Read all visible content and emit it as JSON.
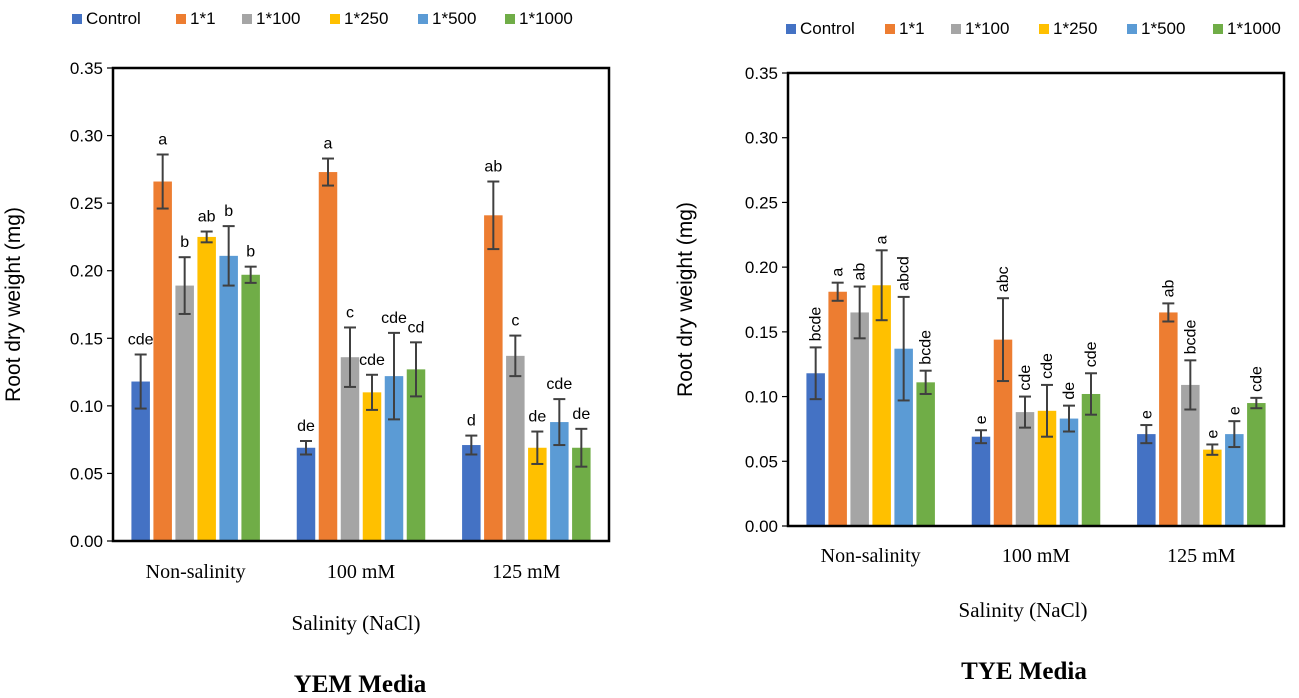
{
  "chart_data": [
    {
      "type": "bar",
      "title": "YEM Media",
      "xlabel": "Salinity (NaCl)",
      "ylabel": "Root dry weight (mg)",
      "ylim": [
        0,
        0.35
      ],
      "yticks": [
        "0.00",
        "0.05",
        "0.10",
        "0.15",
        "0.20",
        "0.25",
        "0.30",
        "0.35"
      ],
      "categories": [
        "Non-salinity",
        "100 mM",
        "125 mM"
      ],
      "legend_position": "top",
      "annotation_rotation": "horizontal",
      "series": [
        {
          "name": "Control",
          "color": "#4472C4",
          "values": [
            0.118,
            0.069,
            0.071
          ],
          "errors": [
            0.02,
            0.005,
            0.007
          ],
          "labels": [
            "cde",
            "de",
            "d"
          ]
        },
        {
          "name": "1*1",
          "color": "#ED7D31",
          "values": [
            0.266,
            0.273,
            0.241
          ],
          "errors": [
            0.02,
            0.01,
            0.025
          ],
          "labels": [
            "a",
            "a",
            "ab"
          ]
        },
        {
          "name": "1*100",
          "color": "#A5A5A5",
          "values": [
            0.189,
            0.136,
            0.137
          ],
          "errors": [
            0.021,
            0.022,
            0.015
          ],
          "labels": [
            "b",
            "c",
            "c"
          ]
        },
        {
          "name": "1*250",
          "color": "#FFC000",
          "values": [
            0.225,
            0.11,
            0.069
          ],
          "errors": [
            0.004,
            0.013,
            0.012
          ],
          "labels": [
            "ab",
            "cde",
            "de"
          ]
        },
        {
          "name": "1*500",
          "color": "#5B9BD5",
          "values": [
            0.211,
            0.122,
            0.088
          ],
          "errors": [
            0.022,
            0.032,
            0.017
          ],
          "labels": [
            "b",
            "cde",
            "cde"
          ]
        },
        {
          "name": "1*1000",
          "color": "#70AD47",
          "values": [
            0.197,
            0.127,
            0.069
          ],
          "errors": [
            0.006,
            0.02,
            0.014
          ],
          "labels": [
            "b",
            "cd",
            "de"
          ]
        }
      ]
    },
    {
      "type": "bar",
      "title": "TYE Media",
      "xlabel": "Salinity (NaCl)",
      "ylabel": "Root dry weight (mg)",
      "ylim": [
        0,
        0.35
      ],
      "yticks": [
        "0.00",
        "0.05",
        "0.10",
        "0.15",
        "0.20",
        "0.25",
        "0.30",
        "0.35"
      ],
      "categories": [
        "Non-salinity",
        "100 mM",
        "125 mM"
      ],
      "legend_position": "top",
      "annotation_rotation": "vertical",
      "series": [
        {
          "name": "Control",
          "color": "#4472C4",
          "values": [
            0.118,
            0.069,
            0.071
          ],
          "errors": [
            0.02,
            0.005,
            0.007
          ],
          "labels": [
            "bcde",
            "e",
            "e"
          ]
        },
        {
          "name": "1*1",
          "color": "#ED7D31",
          "values": [
            0.181,
            0.144,
            0.165
          ],
          "errors": [
            0.007,
            0.032,
            0.007
          ],
          "labels": [
            "a",
            "abc",
            "ab"
          ]
        },
        {
          "name": "1*100",
          "color": "#A5A5A5",
          "values": [
            0.165,
            0.088,
            0.109
          ],
          "errors": [
            0.02,
            0.012,
            0.019
          ],
          "labels": [
            "ab",
            "cde",
            "bcde"
          ]
        },
        {
          "name": "1*250",
          "color": "#FFC000",
          "values": [
            0.186,
            0.089,
            0.059
          ],
          "errors": [
            0.027,
            0.02,
            0.004
          ],
          "labels": [
            "a",
            "cde",
            "e"
          ]
        },
        {
          "name": "1*500",
          "color": "#5B9BD5",
          "values": [
            0.137,
            0.083,
            0.071
          ],
          "errors": [
            0.04,
            0.01,
            0.01
          ],
          "labels": [
            "abcd",
            "de",
            "e"
          ]
        },
        {
          "name": "1*1000",
          "color": "#70AD47",
          "values": [
            0.111,
            0.102,
            0.095
          ],
          "errors": [
            0.009,
            0.016,
            0.004
          ],
          "labels": [
            "bcde",
            "cde",
            "cde"
          ]
        }
      ]
    }
  ]
}
